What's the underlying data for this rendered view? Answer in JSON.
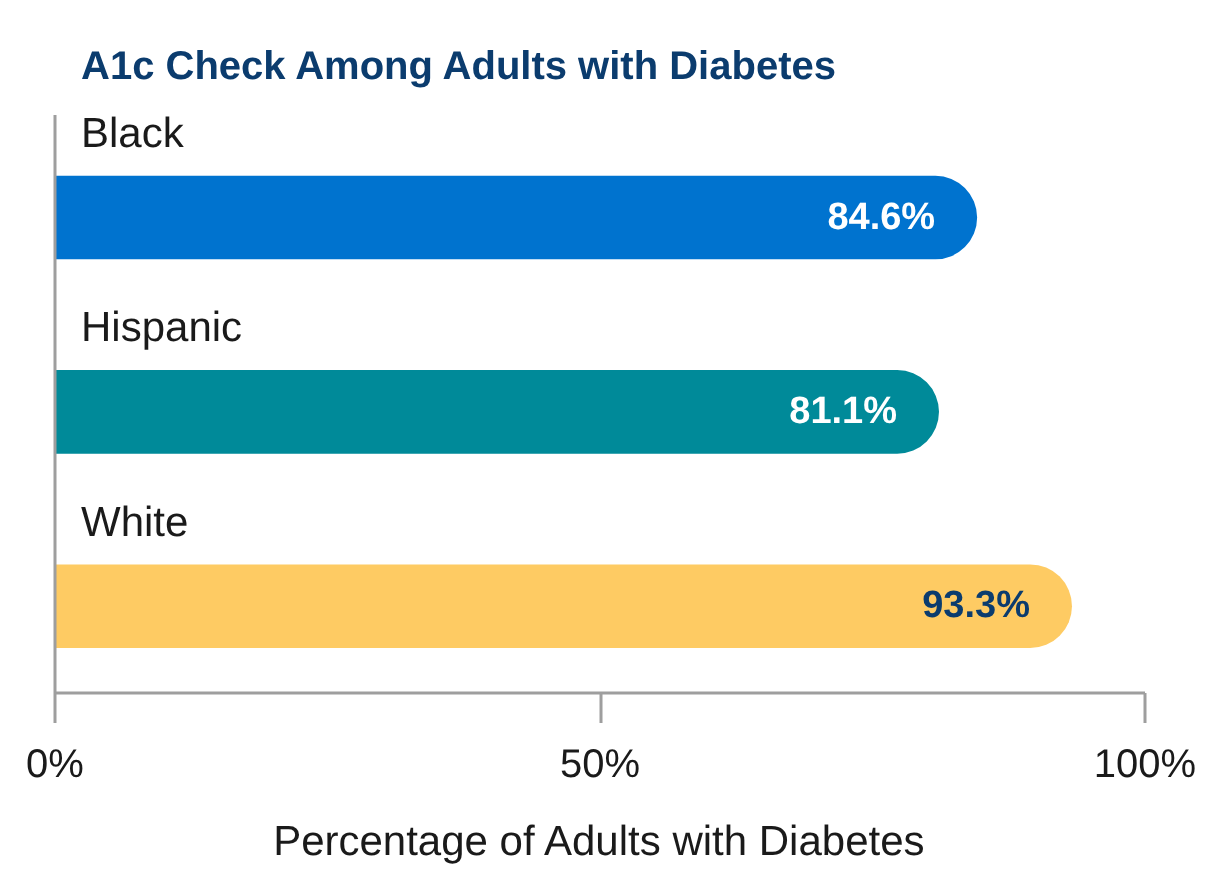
{
  "chart_data": {
    "type": "bar",
    "orientation": "horizontal",
    "title": "A1c Check Among Adults with Diabetes",
    "xlabel": "Percentage of Adults with Diabetes",
    "categories": [
      "Black",
      "Hispanic",
      "White"
    ],
    "values": [
      84.6,
      81.1,
      93.3
    ],
    "colors": [
      "#0073cf",
      "#008a99",
      "#fecb63"
    ],
    "value_labels": [
      "84.6%",
      "81.1%",
      "93.3%"
    ],
    "xlim": [
      0,
      100
    ],
    "xticks": [
      {
        "value": 0,
        "label": "0%"
      },
      {
        "value": 50,
        "label": "50%"
      },
      {
        "value": 100,
        "label": "100%"
      }
    ],
    "grid": false
  }
}
